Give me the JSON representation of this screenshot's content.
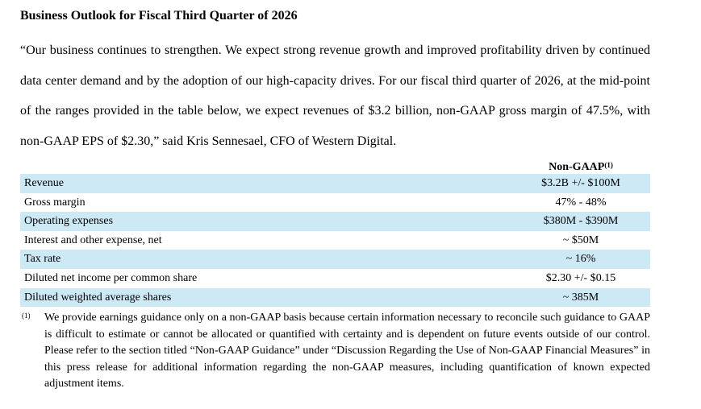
{
  "heading": "Business Outlook for Fiscal Third Quarter of 2026",
  "quote": "“Our business continues to strengthen. We expect strong revenue growth and improved profitability driven by continued data center demand and by the adoption of our high-capacity drives. For our fiscal third quarter of 2026, at the mid-point of the ranges provided in the table below, we expect revenues of $3.2 billion, non-GAAP gross margin of 47.5%, with non-GAAP EPS of $2.30,” said Kris Sennesael, CFO of Western Digital.",
  "table": {
    "column_header": "Non-GAAP",
    "column_header_note": "(1)",
    "rows": [
      {
        "label": "Revenue",
        "value": "$3.2B +/- $100M"
      },
      {
        "label": "Gross margin",
        "value": "47% - 48%"
      },
      {
        "label": "Operating expenses",
        "value": "$380M - $390M"
      },
      {
        "label": "Interest and other expense, net",
        "value": "~ $50M"
      },
      {
        "label": "Tax rate",
        "value": "~ 16%"
      },
      {
        "label": "Diluted net income per common share",
        "value": "$2.30 +/- $0.15"
      },
      {
        "label": "Diluted weighted average shares",
        "value": "~ 385M"
      }
    ]
  },
  "footnote": {
    "marker": "(1)",
    "text": "We provide earnings guidance only on a non-GAAP basis because certain information necessary to reconcile such guidance to GAAP is difficult to estimate or cannot be allocated or quantified with certainty and is dependent on future events outside of our control. Please refer to the section titled “Non-GAAP Guidance” under “Discussion Regarding the Use of Non-GAAP Financial Measures” in this press release for additional information regarding the non-GAAP measures, including quantification of known expected adjustment items."
  }
}
